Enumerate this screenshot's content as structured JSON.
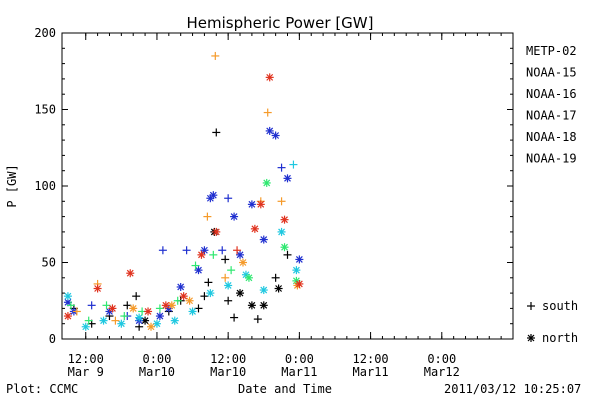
{
  "footer": {
    "left": "Plot: CCMC",
    "center": "Date and Time",
    "right": "2011/03/12 10:25:07"
  },
  "colors": {
    "METP-02": "#000000",
    "NOAA-15": "#1f2fcf",
    "NOAA-16": "#1fc8e0",
    "NOAA-17": "#2ee870",
    "NOAA-18": "#f59a2a",
    "NOAA-19": "#e0321e"
  },
  "chart_data": {
    "type": "scatter",
    "title": "Hemispheric Power [GW]",
    "ylabel": "P [GW]",
    "xlabel": "Date and Time",
    "ylim": [
      0,
      200
    ],
    "yticks": [
      0,
      50,
      100,
      150,
      200
    ],
    "xlim": [
      "2011-03-09 08:00",
      "2011-03-12 12:00"
    ],
    "xticks": [
      {
        "time": "2011-03-09 12:00",
        "line1": "12:00",
        "line2": "Mar 9"
      },
      {
        "time": "2011-03-10 00:00",
        "line1": "0:00",
        "line2": "Mar10"
      },
      {
        "time": "2011-03-10 12:00",
        "line1": "12:00",
        "line2": "Mar10"
      },
      {
        "time": "2011-03-11 00:00",
        "line1": "0:00",
        "line2": "Mar11"
      },
      {
        "time": "2011-03-11 12:00",
        "line1": "12:00",
        "line2": "Mar11"
      },
      {
        "time": "2011-03-12 00:00",
        "line1": "0:00",
        "line2": "Mar12"
      }
    ],
    "grid": false,
    "legend_position": "right",
    "legend": [
      "METP-02",
      "NOAA-15",
      "NOAA-16",
      "NOAA-17",
      "NOAA-18",
      "NOAA-19"
    ],
    "marker_legend": [
      {
        "symbol": "+",
        "label": "south"
      },
      {
        "symbol": "*",
        "label": "north"
      }
    ],
    "series": [
      {
        "name": "METP-02",
        "points": [
          {
            "x": "2011-03-09 10:00",
            "y": 20,
            "m": "+"
          },
          {
            "x": "2011-03-09 13:00",
            "y": 10,
            "m": "+"
          },
          {
            "x": "2011-03-09 16:00",
            "y": 15,
            "m": "+"
          },
          {
            "x": "2011-03-09 19:00",
            "y": 22,
            "m": "+"
          },
          {
            "x": "2011-03-09 20:30",
            "y": 28,
            "m": "+"
          },
          {
            "x": "2011-03-09 21:00",
            "y": 8,
            "m": "+"
          },
          {
            "x": "2011-03-09 22:00",
            "y": 12,
            "m": "*"
          },
          {
            "x": "2011-03-10 02:00",
            "y": 18,
            "m": "+"
          },
          {
            "x": "2011-03-10 04:00",
            "y": 25,
            "m": "+"
          },
          {
            "x": "2011-03-10 07:00",
            "y": 20,
            "m": "+"
          },
          {
            "x": "2011-03-10 08:00",
            "y": 28,
            "m": "+"
          },
          {
            "x": "2011-03-10 08:40",
            "y": 37,
            "m": "+"
          },
          {
            "x": "2011-03-10 09:40",
            "y": 70,
            "m": "*"
          },
          {
            "x": "2011-03-10 10:00",
            "y": 135,
            "m": "+"
          },
          {
            "x": "2011-03-10 11:30",
            "y": 52,
            "m": "+"
          },
          {
            "x": "2011-03-10 12:00",
            "y": 25,
            "m": "+"
          },
          {
            "x": "2011-03-10 13:00",
            "y": 14,
            "m": "+"
          },
          {
            "x": "2011-03-10 14:00",
            "y": 30,
            "m": "*"
          },
          {
            "x": "2011-03-10 16:00",
            "y": 22,
            "m": "*"
          },
          {
            "x": "2011-03-10 17:00",
            "y": 13,
            "m": "+"
          },
          {
            "x": "2011-03-10 18:00",
            "y": 22,
            "m": "*"
          },
          {
            "x": "2011-03-10 20:00",
            "y": 40,
            "m": "+"
          },
          {
            "x": "2011-03-10 20:30",
            "y": 33,
            "m": "*"
          },
          {
            "x": "2011-03-10 22:00",
            "y": 55,
            "m": "+"
          }
        ]
      },
      {
        "name": "NOAA-15",
        "points": [
          {
            "x": "2011-03-09 09:00",
            "y": 24,
            "m": "*"
          },
          {
            "x": "2011-03-09 10:00",
            "y": 18,
            "m": "*"
          },
          {
            "x": "2011-03-09 13:00",
            "y": 22,
            "m": "+"
          },
          {
            "x": "2011-03-09 16:00",
            "y": 18,
            "m": "*"
          },
          {
            "x": "2011-03-09 19:00",
            "y": 15,
            "m": "+"
          },
          {
            "x": "2011-03-09 21:00",
            "y": 12,
            "m": "*"
          },
          {
            "x": "2011-03-10 00:30",
            "y": 15,
            "m": "*"
          },
          {
            "x": "2011-03-10 01:00",
            "y": 58,
            "m": "+"
          },
          {
            "x": "2011-03-10 02:00",
            "y": 20,
            "m": "*"
          },
          {
            "x": "2011-03-10 04:00",
            "y": 34,
            "m": "*"
          },
          {
            "x": "2011-03-10 05:00",
            "y": 58,
            "m": "+"
          },
          {
            "x": "2011-03-10 07:00",
            "y": 45,
            "m": "*"
          },
          {
            "x": "2011-03-10 08:00",
            "y": 58,
            "m": "*"
          },
          {
            "x": "2011-03-10 09:00",
            "y": 92,
            "m": "*"
          },
          {
            "x": "2011-03-10 09:30",
            "y": 94,
            "m": "*"
          },
          {
            "x": "2011-03-10 11:00",
            "y": 58,
            "m": "+"
          },
          {
            "x": "2011-03-10 12:00",
            "y": 92,
            "m": "+"
          },
          {
            "x": "2011-03-10 13:00",
            "y": 80,
            "m": "*"
          },
          {
            "x": "2011-03-10 14:00",
            "y": 55,
            "m": "*"
          },
          {
            "x": "2011-03-10 16:00",
            "y": 88,
            "m": "*"
          },
          {
            "x": "2011-03-10 18:00",
            "y": 65,
            "m": "*"
          },
          {
            "x": "2011-03-10 19:00",
            "y": 136,
            "m": "*"
          },
          {
            "x": "2011-03-10 20:00",
            "y": 133,
            "m": "*"
          },
          {
            "x": "2011-03-10 21:00",
            "y": 112,
            "m": "+"
          },
          {
            "x": "2011-03-10 22:00",
            "y": 105,
            "m": "*"
          },
          {
            "x": "2011-03-11 00:00",
            "y": 52,
            "m": "*"
          }
        ]
      },
      {
        "name": "NOAA-16",
        "points": [
          {
            "x": "2011-03-09 09:00",
            "y": 28,
            "m": "*"
          },
          {
            "x": "2011-03-09 12:00",
            "y": 8,
            "m": "*"
          },
          {
            "x": "2011-03-09 15:00",
            "y": 12,
            "m": "*"
          },
          {
            "x": "2011-03-09 18:00",
            "y": 10,
            "m": "*"
          },
          {
            "x": "2011-03-09 21:00",
            "y": 14,
            "m": "*"
          },
          {
            "x": "2011-03-10 00:00",
            "y": 10,
            "m": "*"
          },
          {
            "x": "2011-03-10 03:00",
            "y": 12,
            "m": "*"
          },
          {
            "x": "2011-03-10 06:00",
            "y": 18,
            "m": "*"
          },
          {
            "x": "2011-03-10 09:00",
            "y": 30,
            "m": "*"
          },
          {
            "x": "2011-03-10 12:00",
            "y": 35,
            "m": "*"
          },
          {
            "x": "2011-03-10 15:00",
            "y": 42,
            "m": "*"
          },
          {
            "x": "2011-03-10 18:00",
            "y": 32,
            "m": "*"
          },
          {
            "x": "2011-03-10 21:00",
            "y": 70,
            "m": "*"
          },
          {
            "x": "2011-03-10 23:00",
            "y": 114,
            "m": "+"
          },
          {
            "x": "2011-03-10 23:30",
            "y": 45,
            "m": "*"
          }
        ]
      },
      {
        "name": "NOAA-17",
        "points": [
          {
            "x": "2011-03-09 09:30",
            "y": 22,
            "m": "+"
          },
          {
            "x": "2011-03-09 12:30",
            "y": 12,
            "m": "+"
          },
          {
            "x": "2011-03-09 15:30",
            "y": 22,
            "m": "+"
          },
          {
            "x": "2011-03-09 18:30",
            "y": 15,
            "m": "+"
          },
          {
            "x": "2011-03-09 21:30",
            "y": 18,
            "m": "+"
          },
          {
            "x": "2011-03-10 00:30",
            "y": 20,
            "m": "+"
          },
          {
            "x": "2011-03-10 03:30",
            "y": 25,
            "m": "+"
          },
          {
            "x": "2011-03-10 06:30",
            "y": 48,
            "m": "+"
          },
          {
            "x": "2011-03-10 09:30",
            "y": 55,
            "m": "+"
          },
          {
            "x": "2011-03-10 12:30",
            "y": 45,
            "m": "+"
          },
          {
            "x": "2011-03-10 15:30",
            "y": 40,
            "m": "*"
          },
          {
            "x": "2011-03-10 18:30",
            "y": 102,
            "m": "*"
          },
          {
            "x": "2011-03-10 21:30",
            "y": 60,
            "m": "*"
          },
          {
            "x": "2011-03-10 23:30",
            "y": 38,
            "m": "*"
          }
        ]
      },
      {
        "name": "NOAA-18",
        "points": [
          {
            "x": "2011-03-09 10:30",
            "y": 18,
            "m": "+"
          },
          {
            "x": "2011-03-09 14:00",
            "y": 36,
            "m": "+"
          },
          {
            "x": "2011-03-09 17:00",
            "y": 12,
            "m": "+"
          },
          {
            "x": "2011-03-09 20:00",
            "y": 20,
            "m": "*"
          },
          {
            "x": "2011-03-09 23:00",
            "y": 8,
            "m": "*"
          },
          {
            "x": "2011-03-10 02:30",
            "y": 22,
            "m": "*"
          },
          {
            "x": "2011-03-10 05:30",
            "y": 25,
            "m": "*"
          },
          {
            "x": "2011-03-10 08:30",
            "y": 80,
            "m": "+"
          },
          {
            "x": "2011-03-10 09:50",
            "y": 185,
            "m": "+"
          },
          {
            "x": "2011-03-10 11:30",
            "y": 40,
            "m": "+"
          },
          {
            "x": "2011-03-10 14:30",
            "y": 50,
            "m": "*"
          },
          {
            "x": "2011-03-10 17:30",
            "y": 90,
            "m": "+"
          },
          {
            "x": "2011-03-10 18:40",
            "y": 148,
            "m": "+"
          },
          {
            "x": "2011-03-10 21:00",
            "y": 90,
            "m": "+"
          },
          {
            "x": "2011-03-10 23:40",
            "y": 35,
            "m": "*"
          }
        ]
      },
      {
        "name": "NOAA-19",
        "points": [
          {
            "x": "2011-03-09 09:00",
            "y": 15,
            "m": "*"
          },
          {
            "x": "2011-03-09 14:00",
            "y": 33,
            "m": "*"
          },
          {
            "x": "2011-03-09 16:30",
            "y": 20,
            "m": "*"
          },
          {
            "x": "2011-03-09 19:30",
            "y": 43,
            "m": "*"
          },
          {
            "x": "2011-03-09 22:30",
            "y": 18,
            "m": "*"
          },
          {
            "x": "2011-03-10 01:30",
            "y": 22,
            "m": "*"
          },
          {
            "x": "2011-03-10 04:30",
            "y": 28,
            "m": "*"
          },
          {
            "x": "2011-03-10 07:30",
            "y": 55,
            "m": "*"
          },
          {
            "x": "2011-03-10 10:00",
            "y": 70,
            "m": "*"
          },
          {
            "x": "2011-03-10 13:30",
            "y": 58,
            "m": "+"
          },
          {
            "x": "2011-03-10 16:30",
            "y": 72,
            "m": "*"
          },
          {
            "x": "2011-03-10 17:30",
            "y": 88,
            "m": "*"
          },
          {
            "x": "2011-03-10 19:00",
            "y": 171,
            "m": "*"
          },
          {
            "x": "2011-03-10 21:30",
            "y": 78,
            "m": "*"
          },
          {
            "x": "2011-03-11 00:00",
            "y": 36,
            "m": "*"
          }
        ]
      }
    ]
  }
}
